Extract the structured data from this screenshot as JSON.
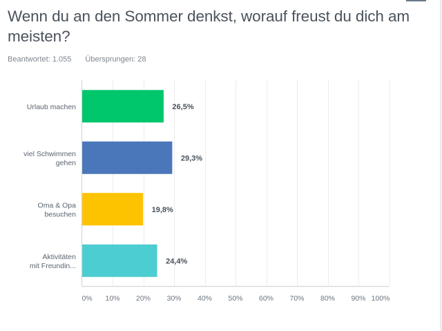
{
  "header": {
    "title": "Wenn du an den Sommer denkst, worauf freust du dich am meisten?",
    "answered": "Beantwortet: 1.055",
    "skipped": "Übersprungen: 28"
  },
  "chart_data": {
    "type": "bar",
    "orientation": "horizontal",
    "title": "Wenn du an den Sommer denkst, worauf freust du dich am meisten?",
    "xlabel": "",
    "ylabel": "",
    "xlim": [
      0,
      100
    ],
    "grid": true,
    "legend": "none",
    "categories": [
      [
        "Urlaub machen"
      ],
      [
        "viel Schwimmen",
        "gehen"
      ],
      [
        "Oma & Opa",
        "besuchen"
      ],
      [
        "Aktivitäten",
        "mit Freundin..."
      ]
    ],
    "values": [
      26.5,
      29.3,
      19.8,
      24.4
    ],
    "value_labels": [
      "26,5%",
      "29,3%",
      "19,8%",
      "24,4%"
    ],
    "colors": [
      "#00c66c",
      "#4a76ba",
      "#fec300",
      "#4ccdd1"
    ],
    "ticks": [
      0,
      10,
      20,
      30,
      40,
      50,
      60,
      70,
      80,
      90,
      100
    ],
    "tick_labels": [
      "0%",
      "10%",
      "20%",
      "30%",
      "40%",
      "50%",
      "60%",
      "70%",
      "80%",
      "90%",
      "100%"
    ]
  }
}
